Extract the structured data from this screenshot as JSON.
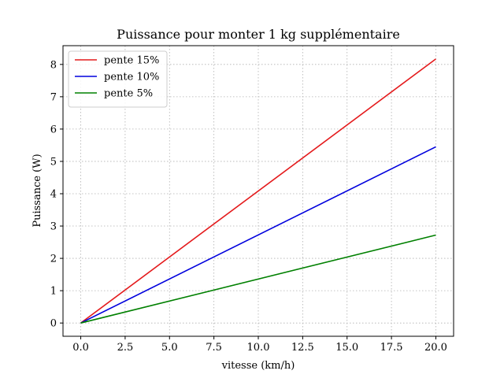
{
  "chart_data": {
    "type": "line",
    "title": "Puissance pour monter 1 kg supplémentaire",
    "xlabel": "vitesse (km/h)",
    "ylabel": "Puissance (W)",
    "xlim": [
      -1.0,
      21.0
    ],
    "ylim": [
      -0.41,
      8.58
    ],
    "xticks": [
      0.0,
      2.5,
      5.0,
      7.5,
      10.0,
      12.5,
      15.0,
      17.5,
      20.0
    ],
    "xtick_labels": [
      "0.0",
      "2.5",
      "5.0",
      "7.5",
      "10.0",
      "12.5",
      "15.0",
      "17.5",
      "20.0"
    ],
    "yticks": [
      0,
      1,
      2,
      3,
      4,
      5,
      6,
      7,
      8
    ],
    "ytick_labels": [
      "0",
      "1",
      "2",
      "3",
      "4",
      "5",
      "6",
      "7",
      "8"
    ],
    "grid": true,
    "legend_position": "top-left",
    "series": [
      {
        "name": "pente 15%",
        "color": "#e41a1c",
        "x": [
          0,
          20
        ],
        "y": [
          0,
          8.17
        ]
      },
      {
        "name": "pente 10%",
        "color": "#0000dd",
        "x": [
          0,
          20
        ],
        "y": [
          0,
          5.45
        ]
      },
      {
        "name": "pente 5%",
        "color": "#008000",
        "x": [
          0,
          20
        ],
        "y": [
          0,
          2.72
        ]
      }
    ]
  }
}
